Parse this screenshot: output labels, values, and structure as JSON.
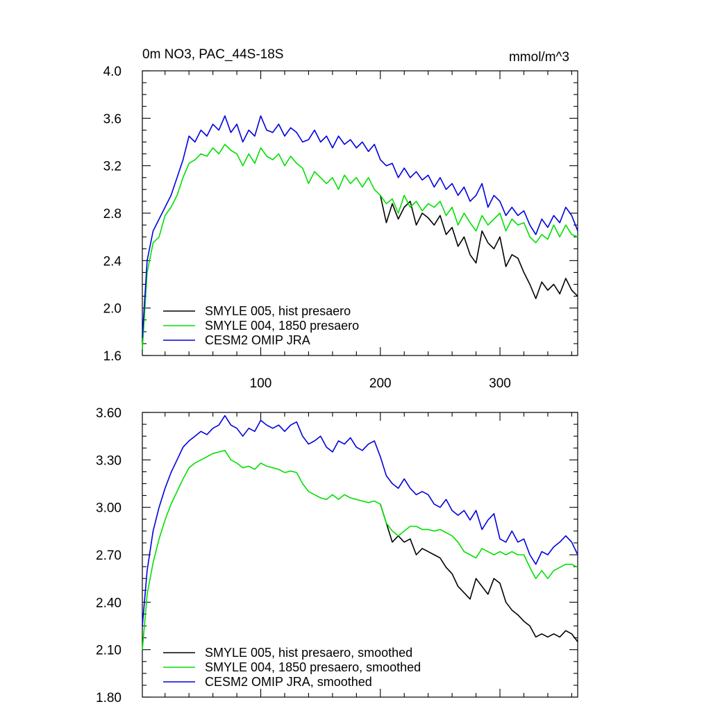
{
  "chart_data": [
    {
      "type": "line",
      "title": "0m NO3, PAC_44S-18S",
      "units_label": "mmol/m^3",
      "xlim": [
        1,
        365
      ],
      "ylim": [
        1.6,
        4.0
      ],
      "yticks": [
        "1.6",
        "2.0",
        "2.4",
        "2.8",
        "3.2",
        "3.6",
        "4.0"
      ],
      "xticks": [
        "100",
        "200",
        "300"
      ],
      "legend_position": "bottom-left",
      "grid": false,
      "series": [
        {
          "name": "SMYLE 005, hist presaero",
          "color": "#000000",
          "x": [
            200,
            205,
            210,
            215,
            220,
            225,
            230,
            235,
            240,
            245,
            250,
            255,
            260,
            265,
            270,
            275,
            280,
            285,
            290,
            295,
            300,
            305,
            310,
            315,
            320,
            325,
            330,
            335,
            340,
            345,
            350,
            355,
            360,
            365
          ],
          "y": [
            2.95,
            2.72,
            2.88,
            2.75,
            2.85,
            2.9,
            2.7,
            2.8,
            2.76,
            2.7,
            2.78,
            2.62,
            2.68,
            2.52,
            2.6,
            2.45,
            2.38,
            2.65,
            2.55,
            2.5,
            2.6,
            2.35,
            2.45,
            2.42,
            2.3,
            2.2,
            2.08,
            2.22,
            2.15,
            2.2,
            2.12,
            2.25,
            2.15,
            2.1
          ]
        },
        {
          "name": "SMYLE 004, 1850 presaero",
          "color": "#00e000",
          "x": [
            1,
            5,
            10,
            15,
            20,
            25,
            30,
            35,
            40,
            45,
            50,
            55,
            60,
            65,
            70,
            75,
            80,
            85,
            90,
            95,
            100,
            105,
            110,
            115,
            120,
            125,
            130,
            135,
            140,
            145,
            150,
            155,
            160,
            165,
            170,
            175,
            180,
            185,
            190,
            195,
            200,
            205,
            210,
            215,
            220,
            225,
            230,
            235,
            240,
            245,
            250,
            255,
            260,
            265,
            270,
            275,
            280,
            285,
            290,
            295,
            300,
            305,
            310,
            315,
            320,
            325,
            330,
            335,
            340,
            345,
            350,
            355,
            360,
            365
          ],
          "y": [
            1.65,
            2.3,
            2.55,
            2.6,
            2.78,
            2.85,
            2.95,
            3.1,
            3.22,
            3.25,
            3.3,
            3.28,
            3.35,
            3.3,
            3.38,
            3.33,
            3.3,
            3.2,
            3.3,
            3.22,
            3.35,
            3.28,
            3.25,
            3.3,
            3.2,
            3.28,
            3.22,
            3.18,
            3.05,
            3.15,
            3.1,
            3.05,
            3.1,
            3.0,
            3.12,
            3.05,
            3.1,
            3.02,
            3.1,
            3.0,
            2.95,
            2.88,
            2.92,
            2.8,
            2.95,
            2.85,
            2.9,
            2.82,
            2.88,
            2.85,
            2.9,
            2.78,
            2.85,
            2.7,
            2.8,
            2.72,
            2.65,
            2.78,
            2.7,
            2.75,
            2.8,
            2.65,
            2.75,
            2.7,
            2.72,
            2.6,
            2.55,
            2.62,
            2.58,
            2.7,
            2.6,
            2.7,
            2.62,
            2.6
          ]
        },
        {
          "name": "CESM2 OMIP JRA",
          "color": "#0000dd",
          "x": [
            1,
            5,
            10,
            15,
            20,
            25,
            30,
            35,
            40,
            45,
            50,
            55,
            60,
            65,
            70,
            75,
            80,
            85,
            90,
            95,
            100,
            105,
            110,
            115,
            120,
            125,
            130,
            135,
            140,
            145,
            150,
            155,
            160,
            165,
            170,
            175,
            180,
            185,
            190,
            195,
            200,
            205,
            210,
            215,
            220,
            225,
            230,
            235,
            240,
            245,
            250,
            255,
            260,
            265,
            270,
            275,
            280,
            285,
            290,
            295,
            300,
            305,
            310,
            315,
            320,
            325,
            330,
            335,
            340,
            345,
            350,
            355,
            360,
            365
          ],
          "y": [
            1.75,
            2.4,
            2.65,
            2.75,
            2.85,
            2.95,
            3.1,
            3.25,
            3.45,
            3.4,
            3.5,
            3.45,
            3.55,
            3.5,
            3.62,
            3.48,
            3.55,
            3.4,
            3.5,
            3.45,
            3.62,
            3.5,
            3.48,
            3.55,
            3.45,
            3.52,
            3.48,
            3.4,
            3.42,
            3.5,
            3.4,
            3.45,
            3.35,
            3.45,
            3.38,
            3.42,
            3.35,
            3.4,
            3.32,
            3.38,
            3.25,
            3.2,
            3.22,
            3.1,
            3.18,
            3.1,
            3.15,
            3.08,
            3.12,
            3.02,
            3.1,
            3.0,
            3.05,
            2.95,
            3.02,
            2.9,
            2.95,
            3.05,
            2.85,
            2.95,
            2.9,
            2.78,
            2.85,
            2.78,
            2.82,
            2.7,
            2.62,
            2.75,
            2.68,
            2.78,
            2.72,
            2.85,
            2.78,
            2.65
          ]
        }
      ]
    },
    {
      "type": "line",
      "title": "",
      "xlim": [
        1,
        365
      ],
      "ylim": [
        1.8,
        3.6
      ],
      "yticks": [
        "1.80",
        "2.10",
        "2.40",
        "2.70",
        "3.00",
        "3.30",
        "3.60"
      ],
      "xticks": [],
      "legend_position": "bottom-left",
      "grid": false,
      "series": [
        {
          "name": "SMYLE 005, hist presaero, smoothed",
          "color": "#000000",
          "x": [
            200,
            205,
            210,
            215,
            220,
            225,
            230,
            235,
            240,
            245,
            250,
            255,
            260,
            265,
            270,
            275,
            280,
            285,
            290,
            295,
            300,
            305,
            310,
            315,
            320,
            325,
            330,
            335,
            340,
            345,
            350,
            355,
            360,
            365
          ],
          "y": [
            3.02,
            2.9,
            2.78,
            2.82,
            2.78,
            2.8,
            2.7,
            2.74,
            2.72,
            2.7,
            2.68,
            2.62,
            2.58,
            2.5,
            2.46,
            2.42,
            2.55,
            2.5,
            2.45,
            2.55,
            2.52,
            2.4,
            2.35,
            2.32,
            2.28,
            2.25,
            2.18,
            2.2,
            2.18,
            2.2,
            2.18,
            2.22,
            2.2,
            2.15
          ]
        },
        {
          "name": "SMYLE 004, 1850 presaero, smoothed",
          "color": "#00e000",
          "x": [
            1,
            5,
            10,
            15,
            20,
            25,
            30,
            35,
            40,
            45,
            50,
            55,
            60,
            65,
            70,
            75,
            80,
            85,
            90,
            95,
            100,
            105,
            110,
            115,
            120,
            125,
            130,
            135,
            140,
            145,
            150,
            155,
            160,
            165,
            170,
            175,
            180,
            185,
            190,
            195,
            200,
            205,
            210,
            215,
            220,
            225,
            230,
            235,
            240,
            245,
            250,
            255,
            260,
            265,
            270,
            275,
            280,
            285,
            290,
            295,
            300,
            305,
            310,
            315,
            320,
            325,
            330,
            335,
            340,
            345,
            350,
            355,
            360,
            365
          ],
          "y": [
            2.1,
            2.45,
            2.65,
            2.8,
            2.92,
            3.02,
            3.1,
            3.18,
            3.25,
            3.28,
            3.3,
            3.32,
            3.34,
            3.35,
            3.36,
            3.3,
            3.28,
            3.25,
            3.26,
            3.24,
            3.28,
            3.26,
            3.25,
            3.24,
            3.22,
            3.23,
            3.22,
            3.15,
            3.1,
            3.08,
            3.06,
            3.05,
            3.08,
            3.05,
            3.08,
            3.06,
            3.05,
            3.04,
            3.03,
            3.04,
            3.02,
            2.9,
            2.85,
            2.82,
            2.85,
            2.88,
            2.88,
            2.86,
            2.86,
            2.85,
            2.86,
            2.84,
            2.82,
            2.78,
            2.72,
            2.7,
            2.68,
            2.74,
            2.72,
            2.7,
            2.72,
            2.7,
            2.72,
            2.7,
            2.7,
            2.62,
            2.55,
            2.6,
            2.55,
            2.6,
            2.62,
            2.64,
            2.64,
            2.62
          ]
        },
        {
          "name": "CESM2 OMIP JRA, smoothed",
          "color": "#0000dd",
          "x": [
            1,
            5,
            10,
            15,
            20,
            25,
            30,
            35,
            40,
            45,
            50,
            55,
            60,
            65,
            70,
            75,
            80,
            85,
            90,
            95,
            100,
            105,
            110,
            115,
            120,
            125,
            130,
            135,
            140,
            145,
            150,
            155,
            160,
            165,
            170,
            175,
            180,
            185,
            190,
            195,
            200,
            205,
            210,
            215,
            220,
            225,
            230,
            235,
            240,
            245,
            250,
            255,
            260,
            265,
            270,
            275,
            280,
            285,
            290,
            295,
            300,
            305,
            310,
            315,
            320,
            325,
            330,
            335,
            340,
            345,
            350,
            355,
            360,
            365
          ],
          "y": [
            2.25,
            2.6,
            2.85,
            3.0,
            3.12,
            3.22,
            3.3,
            3.38,
            3.42,
            3.45,
            3.48,
            3.46,
            3.5,
            3.52,
            3.58,
            3.52,
            3.5,
            3.45,
            3.5,
            3.48,
            3.55,
            3.52,
            3.5,
            3.52,
            3.48,
            3.52,
            3.54,
            3.45,
            3.4,
            3.42,
            3.45,
            3.38,
            3.35,
            3.42,
            3.4,
            3.44,
            3.38,
            3.36,
            3.4,
            3.42,
            3.32,
            3.2,
            3.15,
            3.12,
            3.18,
            3.12,
            3.08,
            3.1,
            3.08,
            3.02,
            3.0,
            3.05,
            2.98,
            2.95,
            2.98,
            2.92,
            2.98,
            2.86,
            2.92,
            2.96,
            2.8,
            2.78,
            2.85,
            2.78,
            2.8,
            2.7,
            2.64,
            2.72,
            2.7,
            2.75,
            2.78,
            2.82,
            2.78,
            2.7
          ]
        }
      ]
    }
  ]
}
